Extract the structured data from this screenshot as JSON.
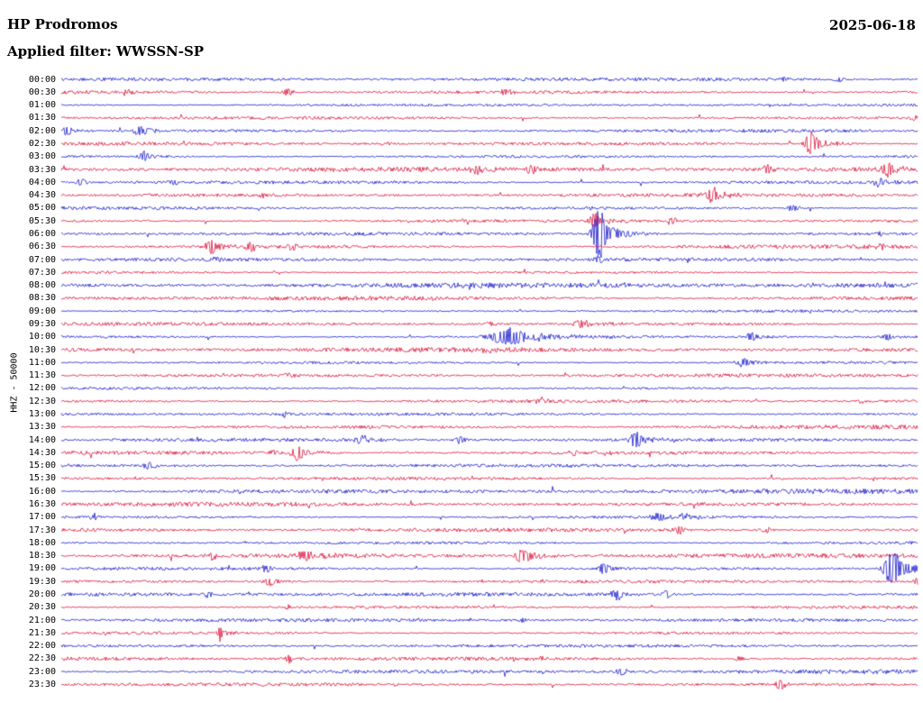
{
  "header": {
    "station": "HP Prodromos",
    "date": "2025-06-18",
    "filter_label": "Applied filter: WWSSN-SP"
  },
  "axis": {
    "y_label": "HHZ - 50000"
  },
  "colors": {
    "blue": "#1a1acd",
    "red": "#dc143c"
  },
  "chart_data": {
    "type": "line",
    "subtype": "helicorder-seismogram",
    "title": "HP Prodromos",
    "subtitle": "Applied filter: WWSSN-SP",
    "date": "2025-06-18",
    "y_axis_label": "HHZ - 50000",
    "row_interval_minutes": 30,
    "trace_color_cycle": [
      "blue",
      "red"
    ],
    "rows": [
      {
        "time": "00:00",
        "color": "blue",
        "noise": 0.9,
        "events": [
          {
            "pos": 0.844,
            "amp": 2.0,
            "width": 5
          },
          {
            "pos": 0.908,
            "amp": 2.5,
            "width": 4
          }
        ]
      },
      {
        "time": "00:30",
        "color": "red",
        "noise": 1.1,
        "events": [
          {
            "pos": 0.076,
            "amp": 3.5,
            "width": 4
          },
          {
            "pos": 0.265,
            "amp": 4.5,
            "width": 4
          },
          {
            "pos": 0.52,
            "amp": 2.0,
            "width": 6
          }
        ]
      },
      {
        "time": "01:00",
        "color": "blue",
        "noise": 0.7,
        "events": []
      },
      {
        "time": "01:30",
        "color": "red",
        "noise": 0.9,
        "events": [
          {
            "pos": 0.996,
            "amp": 3.0,
            "width": 3
          }
        ]
      },
      {
        "time": "02:00",
        "color": "blue",
        "noise": 0.9,
        "events": [
          {
            "pos": 0.007,
            "amp": 5.0,
            "width": 4
          },
          {
            "pos": 0.093,
            "amp": 5.0,
            "width": 6
          }
        ]
      },
      {
        "time": "02:30",
        "color": "red",
        "noise": 0.9,
        "events": [
          {
            "pos": 0.38,
            "amp": 2.0,
            "width": 5
          },
          {
            "pos": 0.876,
            "amp": 14.0,
            "width": 5
          }
        ]
      },
      {
        "time": "03:00",
        "color": "blue",
        "noise": 0.9,
        "events": [
          {
            "pos": 0.097,
            "amp": 6.0,
            "width": 4
          }
        ]
      },
      {
        "time": "03:30",
        "color": "red",
        "noise": 1.3,
        "events": [
          {
            "pos": 0.486,
            "amp": 4.0,
            "width": 5
          },
          {
            "pos": 0.549,
            "amp": 4.0,
            "width": 5
          },
          {
            "pos": 0.823,
            "amp": 6.0,
            "width": 4
          },
          {
            "pos": 0.965,
            "amp": 7.0,
            "width": 5
          }
        ]
      },
      {
        "time": "04:00",
        "color": "blue",
        "noise": 1.1,
        "events": [
          {
            "pos": 0.023,
            "amp": 4.0,
            "width": 5
          },
          {
            "pos": 0.13,
            "amp": 2.5,
            "width": 5
          },
          {
            "pos": 0.955,
            "amp": 6.0,
            "width": 4
          }
        ]
      },
      {
        "time": "04:30",
        "color": "red",
        "noise": 0.9,
        "events": [
          {
            "pos": 0.234,
            "amp": 3.0,
            "width": 4
          },
          {
            "pos": 0.76,
            "amp": 9.0,
            "width": 5
          }
        ]
      },
      {
        "time": "05:00",
        "color": "blue",
        "noise": 0.9,
        "events": [
          {
            "pos": 0.62,
            "amp": 2.0,
            "width": 4
          },
          {
            "pos": 0.855,
            "amp": 3.5,
            "width": 5
          }
        ]
      },
      {
        "time": "05:30",
        "color": "red",
        "noise": 0.9,
        "events": [
          {
            "pos": 0.623,
            "amp": 8.0,
            "width": 5
          },
          {
            "pos": 0.713,
            "amp": 4.0,
            "width": 4
          }
        ]
      },
      {
        "time": "06:00",
        "color": "blue",
        "noise": 0.9,
        "events": [
          {
            "pos": 0.628,
            "amp": 30.0,
            "width": 5
          },
          {
            "pos": 0.955,
            "amp": 3.0,
            "width": 4
          }
        ]
      },
      {
        "time": "06:30",
        "color": "red",
        "noise": 1.2,
        "events": [
          {
            "pos": 0.176,
            "amp": 9.0,
            "width": 5
          },
          {
            "pos": 0.223,
            "amp": 4.0,
            "width": 4
          },
          {
            "pos": 0.27,
            "amp": 3.0,
            "width": 4
          },
          {
            "pos": 0.955,
            "amp": 3.0,
            "width": 4
          }
        ]
      },
      {
        "time": "07:00",
        "color": "blue",
        "noise": 0.9,
        "events": [
          {
            "pos": 0.18,
            "amp": 2.0,
            "width": 4
          },
          {
            "pos": 0.628,
            "amp": 5.0,
            "width": 4
          }
        ]
      },
      {
        "time": "07:30",
        "color": "red",
        "noise": 0.8,
        "events": []
      },
      {
        "time": "08:00",
        "color": "blue",
        "noise": 1.4,
        "events": []
      },
      {
        "time": "08:30",
        "color": "red",
        "noise": 1.3,
        "events": []
      },
      {
        "time": "09:00",
        "color": "blue",
        "noise": 0.7,
        "events": []
      },
      {
        "time": "09:30",
        "color": "red",
        "noise": 0.9,
        "events": [
          {
            "pos": 0.502,
            "amp": 2.0,
            "width": 5
          },
          {
            "pos": 0.607,
            "amp": 5.0,
            "width": 6
          }
        ]
      },
      {
        "time": "10:00",
        "color": "blue",
        "noise": 0.9,
        "events": [
          {
            "pos": 0.523,
            "amp": 10.0,
            "width": 14
          },
          {
            "pos": 0.807,
            "amp": 5.0,
            "width": 5
          },
          {
            "pos": 0.965,
            "amp": 4.0,
            "width": 4
          }
        ]
      },
      {
        "time": "10:30",
        "color": "red",
        "noise": 1.2,
        "events": [
          {
            "pos": 0.497,
            "amp": 3.0,
            "width": 5
          }
        ]
      },
      {
        "time": "11:00",
        "color": "blue",
        "noise": 0.9,
        "events": [
          {
            "pos": 0.797,
            "amp": 5.0,
            "width": 5
          }
        ]
      },
      {
        "time": "11:30",
        "color": "red",
        "noise": 0.9,
        "events": [
          {
            "pos": 0.265,
            "amp": 2.5,
            "width": 4
          }
        ]
      },
      {
        "time": "12:00",
        "color": "blue",
        "noise": 0.7,
        "events": []
      },
      {
        "time": "12:30",
        "color": "red",
        "noise": 0.9,
        "events": [
          {
            "pos": 0.56,
            "amp": 3.5,
            "width": 5
          },
          {
            "pos": 0.934,
            "amp": 2.0,
            "width": 4
          }
        ]
      },
      {
        "time": "13:00",
        "color": "blue",
        "noise": 0.8,
        "events": [
          {
            "pos": 0.26,
            "amp": 3.0,
            "width": 3
          }
        ]
      },
      {
        "time": "13:30",
        "color": "red",
        "noise": 1.2,
        "events": []
      },
      {
        "time": "14:00",
        "color": "blue",
        "noise": 0.9,
        "events": [
          {
            "pos": 0.349,
            "amp": 5.0,
            "width": 4
          },
          {
            "pos": 0.465,
            "amp": 4.0,
            "width": 4
          },
          {
            "pos": 0.671,
            "amp": 9.0,
            "width": 5
          }
        ]
      },
      {
        "time": "14:30",
        "color": "red",
        "noise": 1.2,
        "events": [
          {
            "pos": 0.249,
            "amp": 3.0,
            "width": 4
          },
          {
            "pos": 0.276,
            "amp": 9.0,
            "width": 5
          },
          {
            "pos": 0.597,
            "amp": 3.0,
            "width": 4
          }
        ]
      },
      {
        "time": "15:00",
        "color": "blue",
        "noise": 0.9,
        "events": [
          {
            "pos": 0.102,
            "amp": 5.0,
            "width": 4
          }
        ]
      },
      {
        "time": "15:30",
        "color": "red",
        "noise": 1.0,
        "events": []
      },
      {
        "time": "16:00",
        "color": "blue",
        "noise": 1.3,
        "events": []
      },
      {
        "time": "16:30",
        "color": "red",
        "noise": 1.1,
        "events": []
      },
      {
        "time": "17:00",
        "color": "blue",
        "noise": 0.9,
        "events": [
          {
            "pos": 0.039,
            "amp": 4.0,
            "width": 3
          },
          {
            "pos": 0.697,
            "amp": 5.0,
            "width": 5
          },
          {
            "pos": 0.728,
            "amp": 3.0,
            "width": 4
          }
        ]
      },
      {
        "time": "17:30",
        "color": "red",
        "noise": 1.0,
        "events": [
          {
            "pos": 0.723,
            "amp": 4.0,
            "width": 5
          },
          {
            "pos": 0.823,
            "amp": 3.0,
            "width": 4
          }
        ]
      },
      {
        "time": "18:00",
        "color": "blue",
        "noise": 1.0,
        "events": []
      },
      {
        "time": "18:30",
        "color": "red",
        "noise": 1.2,
        "events": [
          {
            "pos": 0.176,
            "amp": 3.5,
            "width": 4
          },
          {
            "pos": 0.286,
            "amp": 8.0,
            "width": 5
          },
          {
            "pos": 0.539,
            "amp": 8.0,
            "width": 7
          }
        ]
      },
      {
        "time": "19:00",
        "color": "blue",
        "noise": 0.9,
        "events": [
          {
            "pos": 0.239,
            "amp": 4.0,
            "width": 4
          },
          {
            "pos": 0.634,
            "amp": 6.0,
            "width": 5
          },
          {
            "pos": 0.971,
            "amp": 20.0,
            "width": 7
          }
        ]
      },
      {
        "time": "19:30",
        "color": "red",
        "noise": 0.9,
        "events": [
          {
            "pos": 0.244,
            "amp": 5.0,
            "width": 5
          },
          {
            "pos": 0.999,
            "amp": 4.0,
            "width": 3
          }
        ]
      },
      {
        "time": "20:00",
        "color": "blue",
        "noise": 1.1,
        "events": [
          {
            "pos": 0.171,
            "amp": 3.0,
            "width": 4
          },
          {
            "pos": 0.649,
            "amp": 6.0,
            "width": 5
          },
          {
            "pos": 0.707,
            "amp": 4.0,
            "width": 4
          }
        ]
      },
      {
        "time": "20:30",
        "color": "red",
        "noise": 0.9,
        "events": [
          {
            "pos": 0.265,
            "amp": 2.5,
            "width": 4
          }
        ]
      },
      {
        "time": "21:00",
        "color": "blue",
        "noise": 0.9,
        "events": [
          {
            "pos": 0.539,
            "amp": 2.0,
            "width": 4
          }
        ]
      },
      {
        "time": "21:30",
        "color": "red",
        "noise": 0.9,
        "events": [
          {
            "pos": 0.186,
            "amp": 9.0,
            "width": 2
          }
        ]
      },
      {
        "time": "22:00",
        "color": "blue",
        "noise": 0.8,
        "events": []
      },
      {
        "time": "22:30",
        "color": "red",
        "noise": 1.2,
        "events": [
          {
            "pos": 0.265,
            "amp": 4.0,
            "width": 4
          },
          {
            "pos": 0.56,
            "amp": 2.0,
            "width": 4
          },
          {
            "pos": 0.792,
            "amp": 3.0,
            "width": 4
          }
        ]
      },
      {
        "time": "23:00",
        "color": "blue",
        "noise": 1.1,
        "events": [
          {
            "pos": 0.655,
            "amp": 4.0,
            "width": 5
          }
        ]
      },
      {
        "time": "23:30",
        "color": "red",
        "noise": 0.9,
        "events": [
          {
            "pos": 0.839,
            "amp": 6.0,
            "width": 4
          }
        ]
      }
    ]
  }
}
